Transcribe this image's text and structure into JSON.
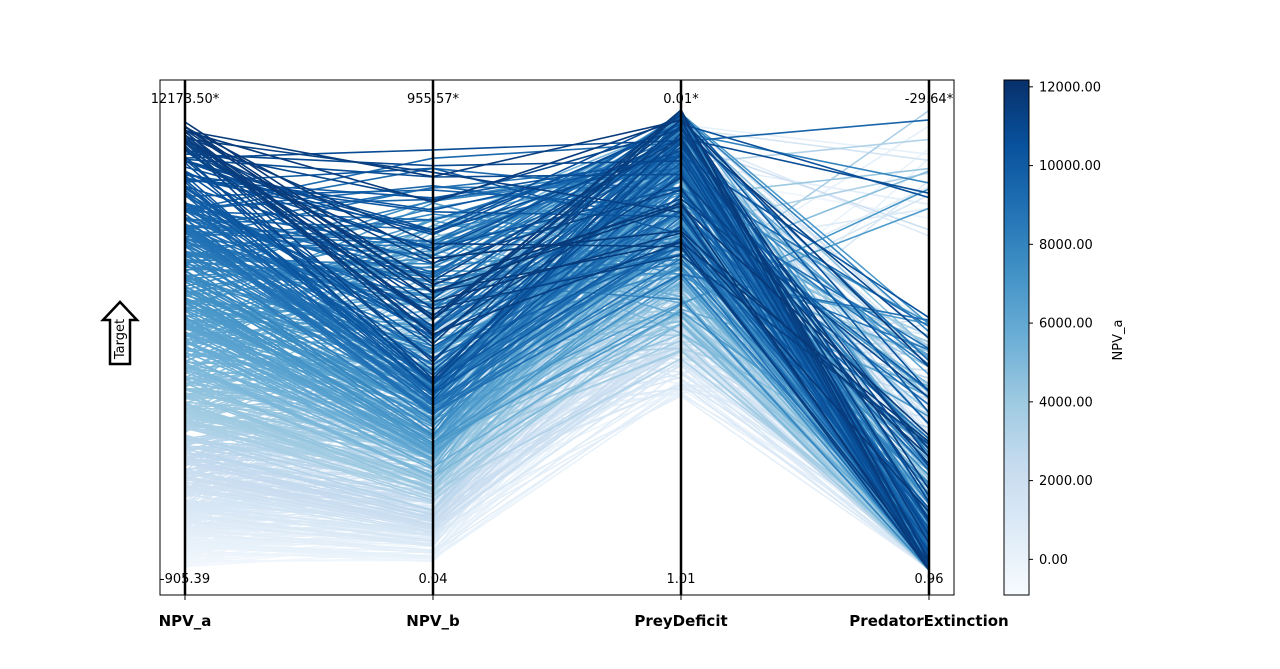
{
  "chart_data": {
    "type": "parallel_coordinates",
    "axes": [
      {
        "name": "NPV_a",
        "top_label": "12173.50*",
        "bottom_label": "-905.39",
        "max": 12173.5,
        "min": -905.39,
        "target_direction": "max"
      },
      {
        "name": "NPV_b",
        "top_label": "955.57*",
        "bottom_label": "0.04",
        "max": 955.57,
        "min": 0.04,
        "target_direction": "max"
      },
      {
        "name": "PreyDeficit",
        "top_label": "0.01*",
        "bottom_label": "1.01",
        "max": 0.01,
        "min": 1.01,
        "target_direction": "min"
      },
      {
        "name": "PredatorExtinction",
        "top_label": "-29.64*",
        "bottom_label": "0.96",
        "max": -29.64,
        "min": 0.96,
        "target_direction": "min"
      }
    ],
    "colorbar": {
      "label": "NPV_a",
      "colormap": "Blues",
      "min": -905.39,
      "max": 12173.5,
      "ticks": [
        {
          "value": 0,
          "label": "0.00"
        },
        {
          "value": 2000,
          "label": "2000.00"
        },
        {
          "value": 4000,
          "label": "4000.00"
        },
        {
          "value": 6000,
          "label": "6000.00"
        },
        {
          "value": 8000,
          "label": "8000.00"
        },
        {
          "value": 10000,
          "label": "10000.00"
        },
        {
          "value": 12000,
          "label": "12000.00"
        }
      ]
    },
    "target_indicator": {
      "label": "Target",
      "direction": "up"
    },
    "line_count_estimate": 600,
    "notes_visible": "Many solution lines colored by NPV_a; '*' marks ideal value at top of each axis"
  },
  "colors": {
    "axis": "#000000",
    "frame": "#000000",
    "background": "#ffffff"
  }
}
